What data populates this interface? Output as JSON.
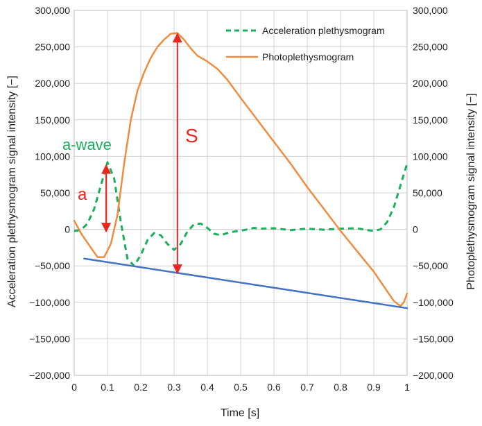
{
  "chart_data": {
    "type": "line",
    "xlabel": "Time [s]",
    "ylabel_left": "Acceleration plethysmogram signal intensity [−]",
    "ylabel_right": "Photoplethysmogram signal intensity [−]",
    "xlim": [
      0,
      1
    ],
    "ylim": [
      -200000,
      300000
    ],
    "x_ticks": [
      "0",
      "0.1",
      "0.2",
      "0.3",
      "0.4",
      "0.5",
      "0.6",
      "0.7",
      "0.8",
      "0.9",
      "1"
    ],
    "y_ticks": [
      "300,000",
      "250,000",
      "200,000",
      "150,000",
      "100,000",
      "50,000",
      "0",
      "−50,000",
      "−100,000",
      "−150,000",
      "−200,000"
    ],
    "grid": true,
    "legend_position": "top-right",
    "series": [
      {
        "name": "Acceleration plethysmogram",
        "style": "dashed",
        "color": "#1aaf5d",
        "points": [
          [
            0,
            -2000
          ],
          [
            0.02,
            -1000
          ],
          [
            0.04,
            8000
          ],
          [
            0.06,
            28000
          ],
          [
            0.08,
            60000
          ],
          [
            0.1,
            92000
          ],
          [
            0.12,
            70000
          ],
          [
            0.14,
            10000
          ],
          [
            0.16,
            -40000
          ],
          [
            0.18,
            -50000
          ],
          [
            0.2,
            -35000
          ],
          [
            0.22,
            -15000
          ],
          [
            0.24,
            -5000
          ],
          [
            0.26,
            -8000
          ],
          [
            0.28,
            -20000
          ],
          [
            0.3,
            -28000
          ],
          [
            0.32,
            -20000
          ],
          [
            0.34,
            -3000
          ],
          [
            0.36,
            7000
          ],
          [
            0.38,
            8000
          ],
          [
            0.4,
            2000
          ],
          [
            0.42,
            -6000
          ],
          [
            0.44,
            -8000
          ],
          [
            0.46,
            -5000
          ],
          [
            0.48,
            -3000
          ],
          [
            0.5,
            -2000
          ],
          [
            0.52,
            0
          ],
          [
            0.54,
            2000
          ],
          [
            0.56,
            1000
          ],
          [
            0.6,
            1500
          ],
          [
            0.65,
            -1000
          ],
          [
            0.7,
            1000
          ],
          [
            0.75,
            -500
          ],
          [
            0.8,
            1000
          ],
          [
            0.85,
            1500
          ],
          [
            0.88,
            -1000
          ],
          [
            0.9,
            -2000
          ],
          [
            0.92,
            0
          ],
          [
            0.94,
            10000
          ],
          [
            0.96,
            30000
          ],
          [
            0.98,
            60000
          ],
          [
            1,
            90000
          ]
        ]
      },
      {
        "name": "Photoplethysmogram",
        "style": "solid",
        "color": "#f08c3f",
        "points": [
          [
            0,
            12000
          ],
          [
            0.02,
            -5000
          ],
          [
            0.05,
            -25000
          ],
          [
            0.07,
            -38000
          ],
          [
            0.09,
            -38000
          ],
          [
            0.11,
            -20000
          ],
          [
            0.13,
            20000
          ],
          [
            0.15,
            90000
          ],
          [
            0.17,
            150000
          ],
          [
            0.19,
            190000
          ],
          [
            0.21,
            215000
          ],
          [
            0.23,
            235000
          ],
          [
            0.25,
            250000
          ],
          [
            0.27,
            260000
          ],
          [
            0.29,
            268000
          ],
          [
            0.31,
            269000
          ],
          [
            0.33,
            260000
          ],
          [
            0.35,
            248000
          ],
          [
            0.37,
            238000
          ],
          [
            0.4,
            230000
          ],
          [
            0.43,
            220000
          ],
          [
            0.46,
            205000
          ],
          [
            0.5,
            180000
          ],
          [
            0.55,
            150000
          ],
          [
            0.6,
            120000
          ],
          [
            0.65,
            90000
          ],
          [
            0.7,
            58000
          ],
          [
            0.75,
            28000
          ],
          [
            0.8,
            -2000
          ],
          [
            0.85,
            -30000
          ],
          [
            0.9,
            -58000
          ],
          [
            0.93,
            -78000
          ],
          [
            0.96,
            -98000
          ],
          [
            0.98,
            -105000
          ],
          [
            0.99,
            -100000
          ],
          [
            1,
            -88000
          ]
        ]
      },
      {
        "name": "",
        "style": "solid",
        "color": "#4472c4",
        "points": [
          [
            0.03,
            -40000
          ],
          [
            1,
            -108000
          ]
        ]
      }
    ],
    "annotations": [
      {
        "text": "a-wave",
        "color": "#1aaf5d"
      },
      {
        "text": "a",
        "color": "#e8251f"
      },
      {
        "text": "S",
        "color": "#e8251f"
      }
    ],
    "arrows": [
      {
        "x": 0.096,
        "y_from": 88000,
        "y_to": -3000,
        "color": "#e8251f"
      },
      {
        "x": 0.31,
        "y_from": 268000,
        "y_to": -60000,
        "color": "#e8251f"
      }
    ]
  }
}
